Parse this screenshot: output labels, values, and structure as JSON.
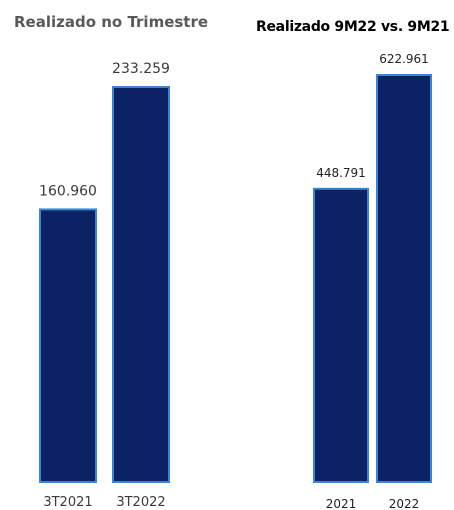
{
  "chart_data": [
    {
      "type": "bar",
      "title": "Realizado no Trimestre",
      "categories": [
        "3T2021",
        "3T2022"
      ],
      "values": [
        160.96,
        233.259
      ],
      "value_labels": [
        "160.960",
        "233.259"
      ],
      "xlabel": "",
      "ylabel": "",
      "ylim": [
        0,
        233.259
      ],
      "grid": false,
      "legend": "none",
      "bar_color": "#0b2364",
      "bar_edge_color": "#3a86d4"
    },
    {
      "type": "bar",
      "title": "Realizado 9M22 vs. 9M21",
      "categories": [
        "2021",
        "2022"
      ],
      "values": [
        448.791,
        622.961
      ],
      "value_labels": [
        "448.791",
        "622.961"
      ],
      "xlabel": "",
      "ylabel": "",
      "ylim": [
        0,
        622.961
      ],
      "grid": false,
      "legend": "none",
      "bar_color": "#0b2364",
      "bar_edge_color": "#3a86d4"
    }
  ]
}
